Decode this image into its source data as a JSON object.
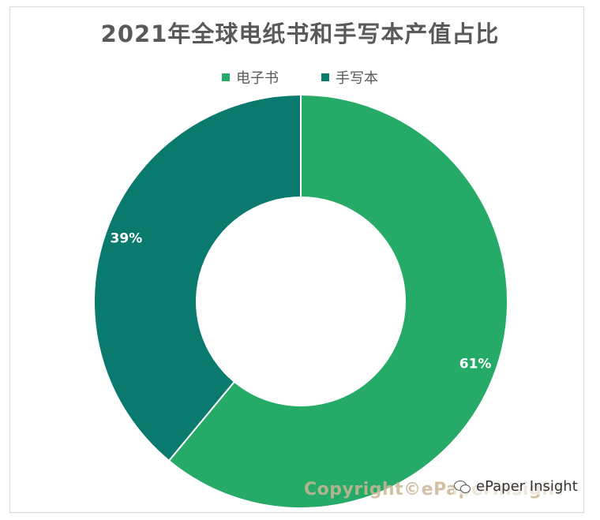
{
  "chart_data": {
    "type": "pie",
    "variant": "donut",
    "title": "2021年全球电纸书和手写本产值占比",
    "categories": [
      "电子书",
      "手写本"
    ],
    "values": [
      61,
      39
    ],
    "labels": [
      "61%",
      "39%"
    ],
    "colors": [
      "#26AA68",
      "#0B7A6E"
    ],
    "legend_position": "top"
  },
  "watermark": "Copyright©ePaperInsight",
  "source": "ePaper Insight"
}
